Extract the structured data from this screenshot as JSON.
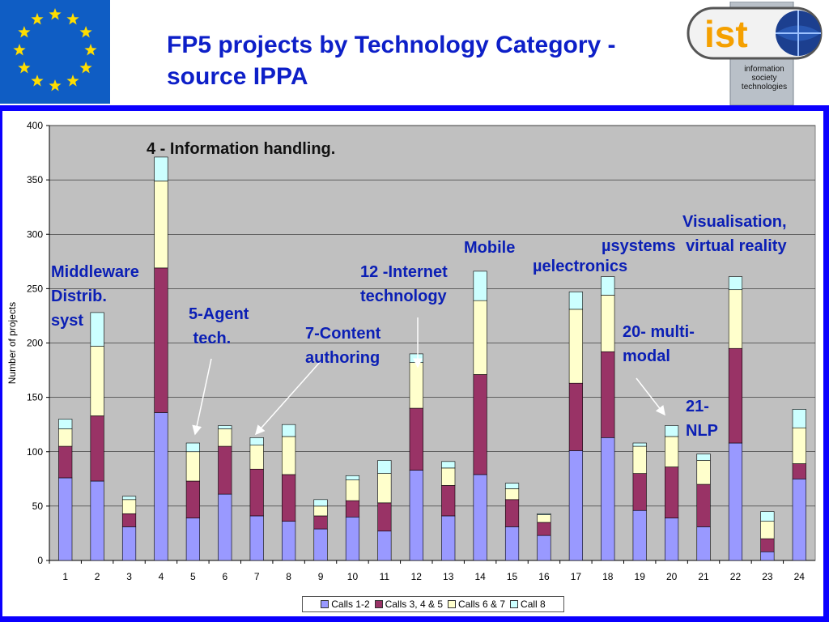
{
  "slide": {
    "title": "FP5 projects by Technology Category - source IPPA",
    "logo": {
      "wordmark": "ist",
      "caption": [
        "information",
        "society",
        "technologies"
      ]
    }
  },
  "colors": {
    "frame": "#0b00ff",
    "title": "#0d1fc8",
    "annotation": "#0b1fb5",
    "plot_bg": "#c0c0c0",
    "eu_blue": "#0f5dc4",
    "eu_star": "#ffdd00"
  },
  "annotations": [
    {
      "id": "info-handling",
      "text": "4 - Information handling.",
      "color": "black"
    },
    {
      "id": "middleware",
      "text": "Middleware\nDistrib.\nsyst",
      "color": "blue"
    },
    {
      "id": "agent",
      "text": "5-Agent\n tech.",
      "color": "blue"
    },
    {
      "id": "content",
      "text": "7-Content\nauthoring",
      "color": "blue"
    },
    {
      "id": "internet",
      "text": "12 -Internet\ntechnology",
      "color": "blue"
    },
    {
      "id": "mobile",
      "text": "Mobile",
      "color": "blue"
    },
    {
      "id": "uelectronics",
      "text": "µelectronics",
      "color": "blue"
    },
    {
      "id": "usystems",
      "text": "µsystems",
      "color": "blue"
    },
    {
      "id": "visualisation",
      "text": "Visualisation,\nvirtual reality",
      "color": "blue"
    },
    {
      "id": "multimodal",
      "text": "20- multi-\nmodal",
      "color": "blue"
    },
    {
      "id": "nlp",
      "text": "21-\nNLP",
      "color": "blue"
    }
  ],
  "chart_data": {
    "type": "bar",
    "stacked": true,
    "title": "",
    "xlabel": "",
    "ylabel": "Number of projects",
    "ylim": [
      0,
      400
    ],
    "yticks": [
      0,
      50,
      100,
      150,
      200,
      250,
      300,
      350,
      400
    ],
    "grid": true,
    "legend_position": "bottom",
    "categories": [
      "1",
      "2",
      "3",
      "4",
      "5",
      "6",
      "7",
      "8",
      "9",
      "10",
      "11",
      "12",
      "13",
      "14",
      "15",
      "16",
      "17",
      "18",
      "19",
      "20",
      "21",
      "22",
      "23",
      "24"
    ],
    "series": [
      {
        "name": "Calls 1-2",
        "color": "#9999ff",
        "values": [
          76,
          73,
          31,
          136,
          39,
          61,
          41,
          36,
          29,
          40,
          27,
          83,
          41,
          79,
          31,
          23,
          101,
          113,
          46,
          39,
          31,
          108,
          8,
          75
        ]
      },
      {
        "name": "Calls 3, 4 & 5",
        "color": "#993366",
        "values": [
          29,
          60,
          12,
          133,
          34,
          44,
          43,
          43,
          12,
          15,
          26,
          57,
          28,
          92,
          25,
          12,
          62,
          79,
          34,
          47,
          39,
          87,
          12,
          14
        ]
      },
      {
        "name": "Calls 6 & 7",
        "color": "#ffffcc",
        "values": [
          16,
          64,
          13,
          80,
          27,
          16,
          22,
          35,
          9,
          19,
          27,
          42,
          16,
          68,
          10,
          7,
          68,
          52,
          25,
          28,
          22,
          54,
          16,
          33
        ]
      },
      {
        "name": "Call 8",
        "color": "#ccffff",
        "values": [
          9,
          31,
          3,
          22,
          8,
          3,
          7,
          11,
          6,
          4,
          12,
          8,
          6,
          27,
          5,
          1,
          16,
          17,
          3,
          10,
          6,
          12,
          9,
          17
        ]
      }
    ]
  }
}
